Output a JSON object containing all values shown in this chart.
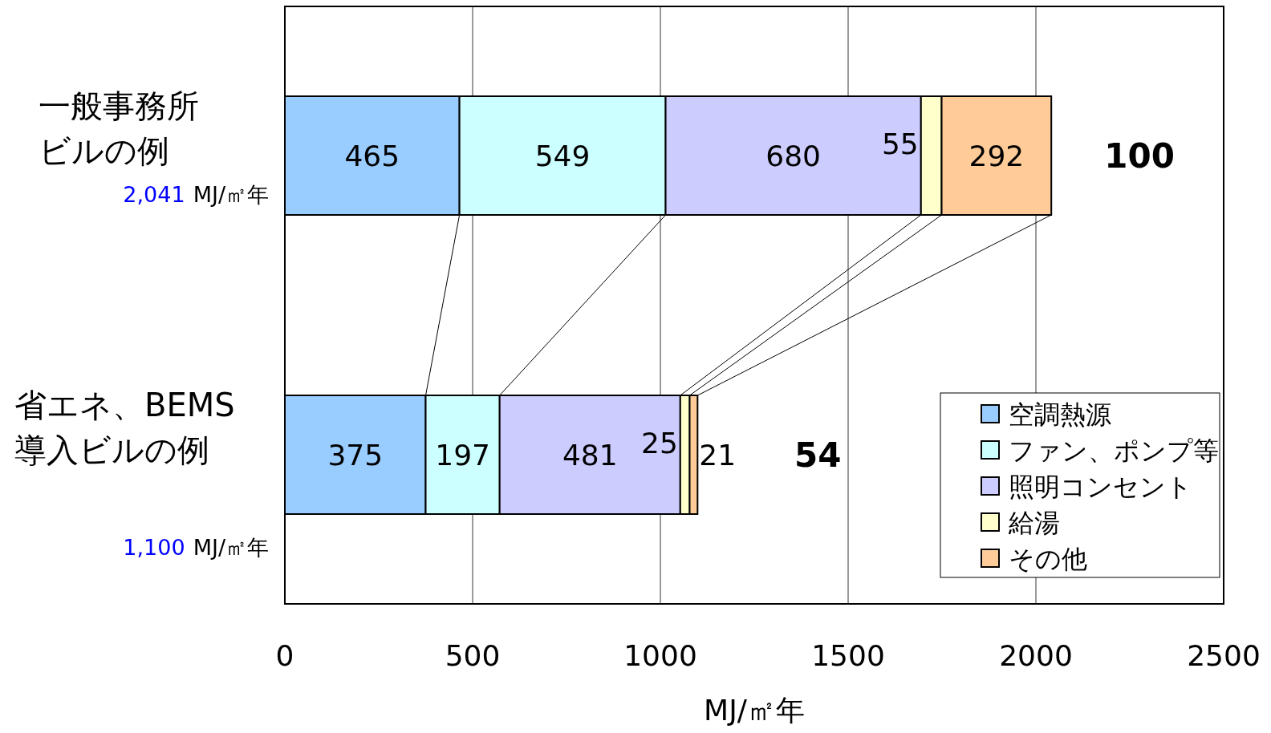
{
  "chart_data": {
    "type": "bar",
    "orientation": "horizontal",
    "stacked": true,
    "categories": [
      "一般事務所ビルの例",
      "省エネ、BEMS導入ビルの例"
    ],
    "series": [
      {
        "name": "空調熱源",
        "color": "#99ccff",
        "values": [
          465,
          375
        ]
      },
      {
        "name": "ファン、ポンプ等",
        "color": "#ccffff",
        "values": [
          549,
          197
        ]
      },
      {
        "name": "照明コンセント",
        "color": "#ccccff",
        "values": [
          680,
          481
        ]
      },
      {
        "name": "給湯",
        "color": "#ffffcc",
        "values": [
          55,
          25
        ]
      },
      {
        "name": "その他",
        "color": "#ffcc99",
        "values": [
          292,
          21
        ]
      }
    ],
    "annotations": [
      "2,041 MJ/㎡年",
      "1,100 MJ/㎡年",
      "100",
      "54"
    ],
    "xlabel": "MJ/㎡年",
    "xlim": [
      0,
      2500
    ],
    "xticks": [
      0,
      500,
      1000,
      1500,
      2000,
      2500
    ],
    "grid": "x",
    "legend": "bottom right",
    "data_labels": true
  }
}
